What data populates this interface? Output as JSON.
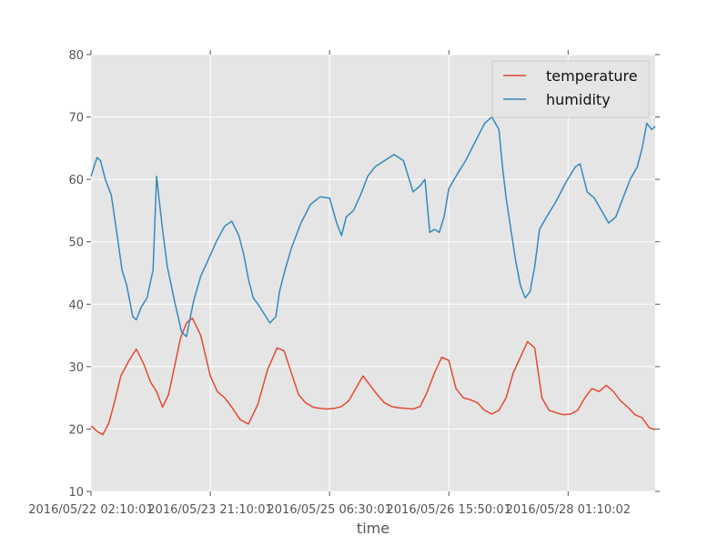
{
  "chart_data": {
    "type": "line",
    "xlabel": "time",
    "ylabel": "",
    "ylim": [
      10,
      80
    ],
    "yticks": [
      10,
      20,
      30,
      40,
      50,
      60,
      70,
      80
    ],
    "x_tick_positions": [
      0,
      1,
      2,
      3,
      4
    ],
    "x_tick_labels": [
      "2016/05/22 02:10:01",
      "2016/05/23 21:10:01",
      "2016/05/25 06:30:01",
      "2016/05/26 15:50:01",
      "2016/05/28 01:10:02"
    ],
    "xlim": [
      0,
      4.73
    ],
    "grid": true,
    "legend_position": "top-right",
    "series": [
      {
        "name": "temperature",
        "color": "#E24A33",
        "x": [
          0,
          0.06,
          0.1,
          0.15,
          0.2,
          0.25,
          0.32,
          0.38,
          0.44,
          0.5,
          0.55,
          0.6,
          0.65,
          0.7,
          0.75,
          0.8,
          0.85,
          0.92,
          1.0,
          1.06,
          1.12,
          1.18,
          1.25,
          1.32,
          1.4,
          1.48,
          1.56,
          1.62,
          1.68,
          1.74,
          1.8,
          1.86,
          1.92,
          1.98,
          2.04,
          2.1,
          2.16,
          2.22,
          2.28,
          2.34,
          2.4,
          2.46,
          2.52,
          2.58,
          2.64,
          2.7,
          2.76,
          2.82,
          2.88,
          2.94,
          3.0,
          3.06,
          3.12,
          3.18,
          3.24,
          3.3,
          3.36,
          3.42,
          3.48,
          3.54,
          3.6,
          3.66,
          3.72,
          3.78,
          3.84,
          3.9,
          3.96,
          4.02,
          4.08,
          4.14,
          4.2,
          4.26,
          4.32,
          4.38,
          4.44,
          4.5,
          4.56,
          4.62,
          4.68,
          4.73
        ],
        "y": [
          20.5,
          19.5,
          19.1,
          21.0,
          24.5,
          28.5,
          31.0,
          32.8,
          30.5,
          27.5,
          26.0,
          23.5,
          25.5,
          30.0,
          34.5,
          37.0,
          37.8,
          35.0,
          28.5,
          26.0,
          25.0,
          23.5,
          21.5,
          20.8,
          24.0,
          29.5,
          33.0,
          32.5,
          29.0,
          25.5,
          24.2,
          23.5,
          23.3,
          23.2,
          23.3,
          23.6,
          24.5,
          26.5,
          28.5,
          27.0,
          25.5,
          24.2,
          23.6,
          23.4,
          23.3,
          23.2,
          23.6,
          26.0,
          29.0,
          31.5,
          31.0,
          26.5,
          25.0,
          24.7,
          24.2,
          23.0,
          22.4,
          23.0,
          25.0,
          29.0,
          31.5,
          34.0,
          33.0,
          25.0,
          23.0,
          22.6,
          22.3,
          22.4,
          23.0,
          25.0,
          26.5,
          26.0,
          27.0,
          26.0,
          24.5,
          23.5,
          22.3,
          21.8,
          20.2,
          19.9
        ]
      },
      {
        "name": "humidity",
        "color": "#348ABD",
        "x": [
          0,
          0.05,
          0.08,
          0.12,
          0.17,
          0.22,
          0.26,
          0.3,
          0.35,
          0.38,
          0.42,
          0.47,
          0.52,
          0.55,
          0.57,
          0.6,
          0.64,
          0.7,
          0.76,
          0.8,
          0.86,
          0.92,
          0.98,
          1.05,
          1.12,
          1.18,
          1.24,
          1.28,
          1.32,
          1.36,
          1.4,
          1.45,
          1.5,
          1.55,
          1.58,
          1.62,
          1.68,
          1.76,
          1.84,
          1.92,
          2.0,
          2.06,
          2.1,
          2.14,
          2.2,
          2.26,
          2.32,
          2.38,
          2.46,
          2.54,
          2.62,
          2.7,
          2.76,
          2.8,
          2.84,
          2.88,
          2.92,
          2.96,
          3.0,
          3.06,
          3.14,
          3.22,
          3.3,
          3.36,
          3.42,
          3.45,
          3.48,
          3.52,
          3.56,
          3.6,
          3.64,
          3.68,
          3.72,
          3.76,
          3.82,
          3.9,
          3.98,
          4.06,
          4.1,
          4.16,
          4.22,
          4.28,
          4.34,
          4.4,
          4.46,
          4.52,
          4.58,
          4.62,
          4.66,
          4.7,
          4.73
        ],
        "y": [
          60.5,
          63.5,
          63.0,
          60.0,
          57.5,
          51.0,
          45.5,
          43.0,
          38.0,
          37.5,
          39.5,
          41.0,
          45.5,
          60.5,
          57.0,
          52.0,
          46.0,
          40.5,
          35.5,
          34.8,
          40.5,
          44.5,
          47.0,
          50.0,
          52.5,
          53.3,
          51.0,
          48.0,
          44.0,
          41.0,
          40.0,
          38.5,
          37.0,
          38.0,
          42.0,
          45.0,
          49.0,
          53.0,
          56.0,
          57.2,
          57.0,
          53.0,
          51.0,
          54.0,
          55.0,
          57.5,
          60.5,
          62.0,
          63.0,
          64.0,
          63.0,
          58.0,
          59.0,
          60.0,
          51.5,
          52.0,
          51.5,
          54.0,
          58.5,
          60.5,
          63.0,
          66.0,
          69.0,
          70.0,
          68.0,
          62.0,
          57.0,
          52.0,
          47.0,
          43.0,
          41.0,
          42.0,
          46.0,
          52.0,
          54.0,
          56.5,
          59.5,
          62.0,
          62.5,
          58.0,
          57.0,
          55.0,
          53.0,
          54.0,
          57.0,
          60.0,
          62.0,
          65.0,
          69.0,
          68.0,
          68.5
        ]
      }
    ]
  }
}
